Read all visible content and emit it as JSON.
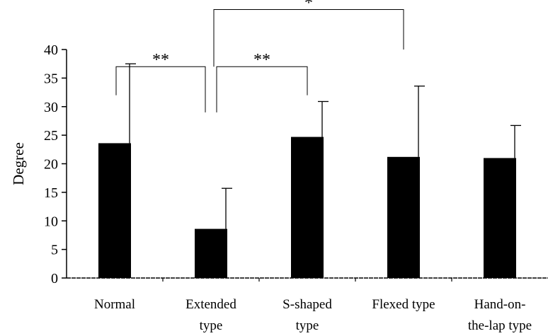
{
  "chart_data": {
    "type": "bar",
    "title": "",
    "xlabel": "",
    "ylabel": "Degree",
    "ylim": [
      0,
      40
    ],
    "yticks": [
      0,
      5,
      10,
      15,
      20,
      25,
      30,
      35,
      40
    ],
    "categories": [
      [
        "Normal"
      ],
      [
        "Extended",
        "type"
      ],
      [
        "S-shaped",
        "type"
      ],
      [
        "Flexed type"
      ],
      [
        "Hand-on-",
        "the-lap type"
      ]
    ],
    "values": [
      23.6,
      8.6,
      24.7,
      21.2,
      21.0
    ],
    "errors": [
      13.9,
      7.1,
      6.2,
      12.4,
      5.7
    ],
    "bar_color": "#000000",
    "significance": [
      {
        "from": 0,
        "to": 1,
        "label": "**",
        "y": 37
      },
      {
        "from": 1,
        "to": 2,
        "label": "**",
        "y": 37
      },
      {
        "from": 1,
        "to": 3,
        "label": "*",
        "y": 47
      }
    ]
  }
}
